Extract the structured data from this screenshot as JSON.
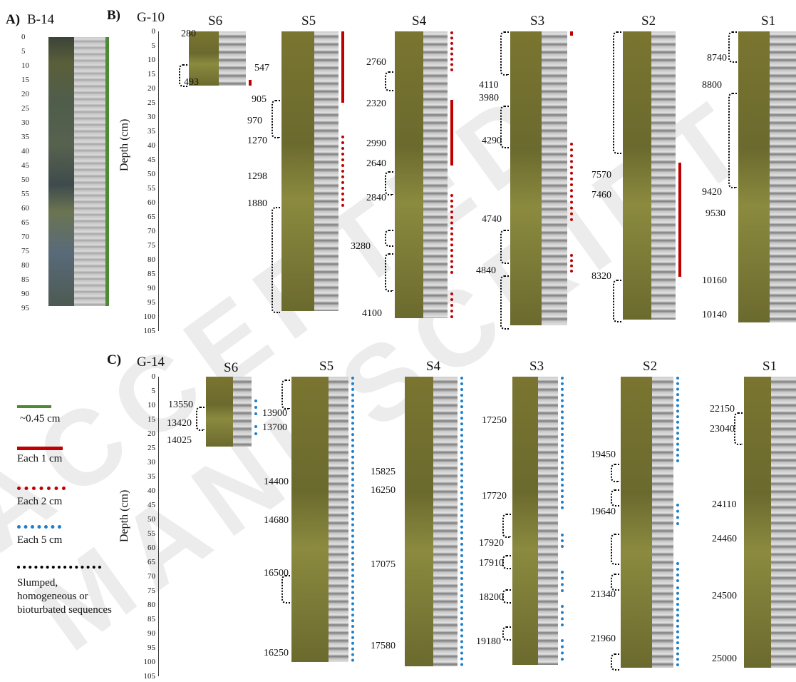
{
  "watermark": "ACCEPTED MANUSCRIPT",
  "panels": {
    "A": {
      "label": "A)",
      "title": "B-14"
    },
    "B": {
      "label": "B)",
      "title": "G-10"
    },
    "C": {
      "label": "C)",
      "title": "G-14"
    }
  },
  "depth_axis": {
    "label": "Depth (cm)",
    "ticks": [
      "0",
      "5",
      "10",
      "15",
      "20",
      "25",
      "30",
      "35",
      "40",
      "45",
      "50",
      "55",
      "60",
      "65",
      "70",
      "75",
      "80",
      "85",
      "90",
      "95",
      "100",
      "105"
    ]
  },
  "b14_ticks": [
    "0",
    "5",
    "10",
    "15",
    "20",
    "25",
    "30",
    "35",
    "40",
    "45",
    "50",
    "55",
    "60",
    "65",
    "70",
    "75",
    "80",
    "85",
    "90",
    "95"
  ],
  "cores_g10": [
    {
      "name": "S6",
      "ages": [
        "280",
        "493"
      ]
    },
    {
      "name": "S5",
      "ages": [
        "547",
        "905",
        "970",
        "1270",
        "1298",
        "1880"
      ]
    },
    {
      "name": "S4",
      "ages": [
        "2760",
        "2320",
        "2990",
        "2640",
        "2840",
        "3280",
        "4100"
      ]
    },
    {
      "name": "S3",
      "ages": [
        "4110",
        "3980",
        "4290",
        "4740",
        "4840"
      ]
    },
    {
      "name": "S2",
      "ages": [
        "7570",
        "7460",
        "8320"
      ]
    },
    {
      "name": "S1",
      "ages": [
        "8740",
        "8800",
        "9420",
        "9530",
        "10160",
        "10140"
      ]
    }
  ],
  "cores_g14": [
    {
      "name": "S6",
      "ages": [
        "13550",
        "13420",
        "14025"
      ]
    },
    {
      "name": "S5",
      "ages": [
        "13900",
        "13700",
        "14400",
        "14680",
        "16500",
        "16250"
      ]
    },
    {
      "name": "S4",
      "ages": [
        "15825",
        "16250",
        "17075",
        "17580"
      ]
    },
    {
      "name": "S3",
      "ages": [
        "17250",
        "17720",
        "17920",
        "17910",
        "18200",
        "19180"
      ]
    },
    {
      "name": "S2",
      "ages": [
        "19450",
        "19640",
        "21340",
        "21960"
      ]
    },
    {
      "name": "S1",
      "ages": [
        "22150",
        "23040",
        "24110",
        "24460",
        "24500",
        "25000"
      ]
    }
  ],
  "legend": {
    "items": [
      {
        "label": "~0.45 cm",
        "color": "#4e8a34",
        "style": "solid"
      },
      {
        "label": "Each 1 cm",
        "color": "#c00000",
        "style": "solid"
      },
      {
        "label": "Each 2 cm",
        "color": "#c00000",
        "style": "dotted"
      },
      {
        "label": "Each 5 cm",
        "color": "#1f7fc8",
        "style": "dotted"
      },
      {
        "label": "Slumped, homogeneous or bioturbated sequences",
        "color": "#000000",
        "style": "dotted"
      }
    ]
  },
  "colors": {
    "core_olive": "#6b6a2e",
    "core_olive_light": "#8b8a3f",
    "xray_gray": "#9a9a9a",
    "green": "#4e8a34",
    "red": "#c00000",
    "blue": "#1f7fc8"
  }
}
